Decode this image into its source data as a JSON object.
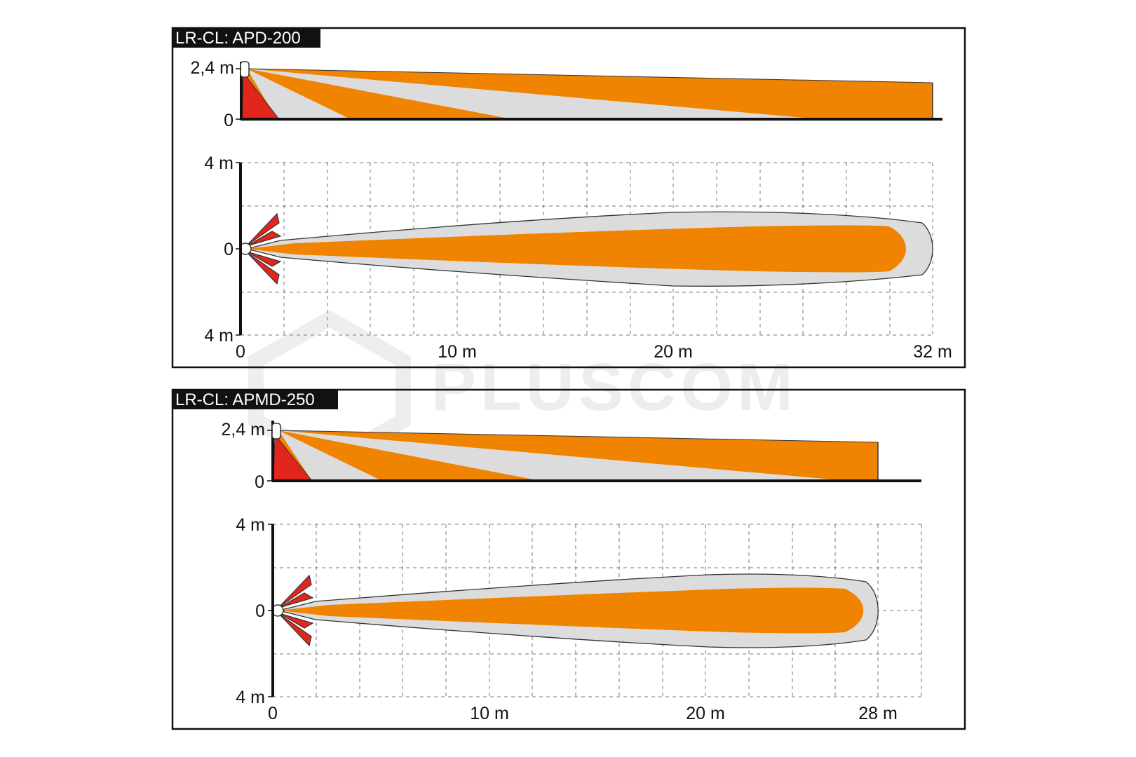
{
  "watermark": {
    "text": "PLUSCOM"
  },
  "panels": [
    {
      "title": "LR-CL: APD-200",
      "side_labels": {
        "top": "2,4 m",
        "bottom": "0"
      },
      "plan_labels": {
        "top": "4 m",
        "center": "0",
        "bottom": "4 m"
      },
      "x_labels": [
        "0",
        "10 m",
        "20 m",
        "32 m"
      ]
    },
    {
      "title": "LR-CL: APMD-250",
      "side_labels": {
        "top": "2,4 m",
        "bottom": "0"
      },
      "plan_labels": {
        "top": "4 m",
        "center": "0",
        "bottom": "4 m"
      },
      "x_labels": [
        "0",
        "10 m",
        "20 m",
        "28 m"
      ]
    }
  ],
  "colors": {
    "orange": "#f08300",
    "gray": "#dcdcdc",
    "red": "#e3261c",
    "frame": "#111111",
    "grid": "#777777"
  }
}
